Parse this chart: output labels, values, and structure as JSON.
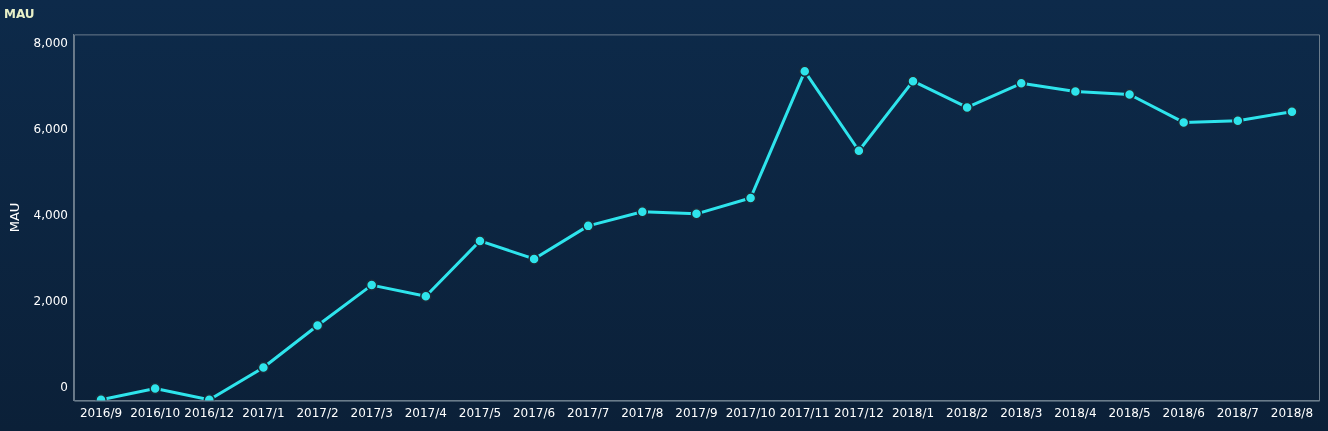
{
  "chart_data": {
    "type": "line",
    "title": "MAU",
    "ylabel": "MAU",
    "categories": [
      "2016/9",
      "2016/10",
      "2016/12",
      "2017/1",
      "2017/2",
      "2017/3",
      "2017/4",
      "2017/5",
      "2017/6",
      "2017/7",
      "2017/8",
      "2017/9",
      "2017/10",
      "2017/11",
      "2017/12",
      "2018/1",
      "2018/2",
      "2018/3",
      "2018/4",
      "2018/5",
      "2018/6",
      "2018/7",
      "2018/8"
    ],
    "series": [
      {
        "color": "#2ee4ec",
        "values": [
          -280,
          -20,
          -280,
          470,
          1450,
          2390,
          2130,
          3420,
          3000,
          3770,
          4100,
          4050,
          4420,
          7370,
          5520,
          7140,
          6530,
          7090,
          6900,
          6830,
          6180,
          6220,
          6430
        ]
      }
    ],
    "ylim": [
      -300,
      8230
    ],
    "yticks": [
      0,
      {
        "value": 2000,
        "label": "2,000"
      },
      {
        "value": 4000,
        "label": "4,000"
      },
      {
        "value": 6000,
        "label": "6,000"
      },
      {
        "value": 8000,
        "label": "8,000"
      }
    ],
    "grid": false,
    "legend": false,
    "marker": "circle",
    "line_style": "solid"
  }
}
